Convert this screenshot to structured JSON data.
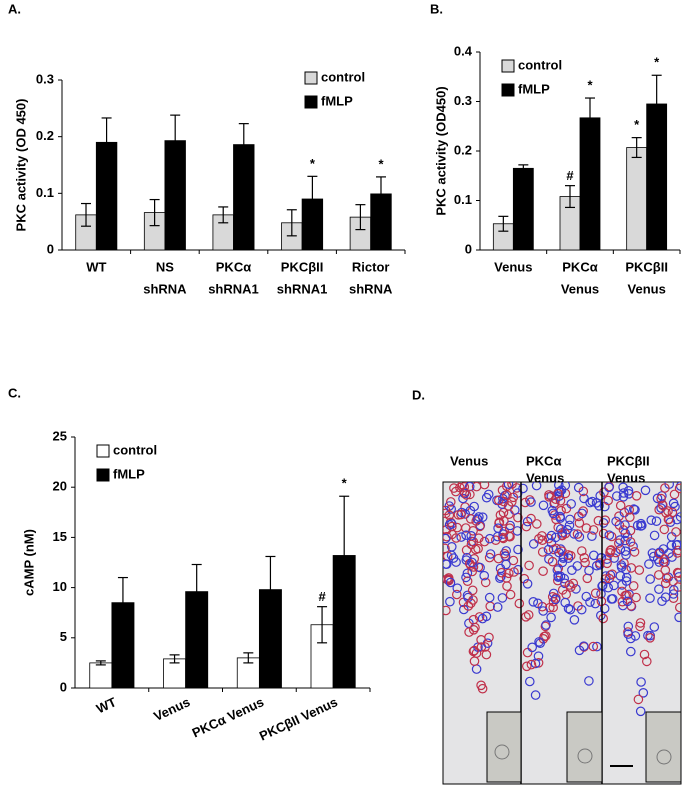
{
  "chart_data": [
    {
      "type": "bar",
      "panel_label": "A.",
      "ylabel": "PKC activity (OD 450)",
      "categories": [
        [
          "WT"
        ],
        [
          "NS",
          "shRNA"
        ],
        [
          "PKCα",
          "shRNA1"
        ],
        [
          "PKCβII",
          "shRNA1"
        ],
        [
          "Rictor",
          "shRNA"
        ]
      ],
      "series": [
        {
          "name": "control",
          "color": "#d9d9d9",
          "values": [
            0.062,
            0.066,
            0.062,
            0.048,
            0.058
          ],
          "errors": [
            0.02,
            0.023,
            0.014,
            0.023,
            0.022
          ],
          "markers": [
            null,
            null,
            null,
            null,
            null
          ]
        },
        {
          "name": "fMLP",
          "color": "#000000",
          "values": [
            0.19,
            0.193,
            0.186,
            0.09,
            0.099
          ],
          "errors": [
            0.043,
            0.045,
            0.037,
            0.04,
            0.03
          ],
          "markers": [
            null,
            null,
            null,
            "*",
            "*"
          ]
        }
      ],
      "ylim": [
        0,
        0.3
      ],
      "yticks": [
        0,
        0.1,
        0.2,
        0.3
      ],
      "legend": "upper right"
    },
    {
      "type": "bar",
      "panel_label": "B.",
      "ylabel": "PKC activity (OD450)",
      "categories": [
        [
          "Venus"
        ],
        [
          "PKCα",
          "Venus"
        ],
        [
          "PKCβII",
          "Venus"
        ]
      ],
      "series": [
        {
          "name": "control",
          "color": "#d9d9d9",
          "values": [
            0.053,
            0.108,
            0.207
          ],
          "errors": [
            0.015,
            0.022,
            0.02
          ],
          "markers": [
            null,
            "#",
            "*"
          ]
        },
        {
          "name": "fMLP",
          "color": "#000000",
          "values": [
            0.165,
            0.267,
            0.295
          ],
          "errors": [
            0.007,
            0.04,
            0.058
          ],
          "markers": [
            null,
            "*",
            "*"
          ]
        }
      ],
      "ylim": [
        0,
        0.4
      ],
      "yticks": [
        0,
        0.1,
        0.2,
        0.3,
        0.4
      ],
      "legend": "upper left"
    },
    {
      "type": "bar",
      "panel_label": "C.",
      "ylabel": "cAMP (nM)",
      "rotate_labels": true,
      "categories": [
        [
          "WT"
        ],
        [
          "Venus"
        ],
        [
          "PKCα Venus"
        ],
        [
          "PKCβII Venus"
        ]
      ],
      "series": [
        {
          "name": "control",
          "color": "#ffffff",
          "values": [
            2.5,
            2.9,
            3.0,
            6.3
          ],
          "errors": [
            0.2,
            0.4,
            0.5,
            1.8
          ],
          "markers": [
            null,
            null,
            null,
            "#"
          ]
        },
        {
          "name": "fMLP",
          "color": "#000000",
          "values": [
            8.5,
            9.6,
            9.8,
            13.2
          ],
          "errors": [
            2.5,
            2.7,
            3.3,
            5.9
          ],
          "markers": [
            null,
            null,
            null,
            "*"
          ]
        }
      ],
      "ylim": [
        0,
        25
      ],
      "yticks": [
        0,
        5,
        10,
        15,
        20,
        25
      ],
      "legend": "upper left"
    }
  ],
  "image_panel": {
    "panel_label": "D.",
    "columns": [
      [
        "Venus"
      ],
      [
        "PKCα",
        "Venus"
      ],
      [
        "PKCβII",
        "Venus"
      ]
    ]
  }
}
